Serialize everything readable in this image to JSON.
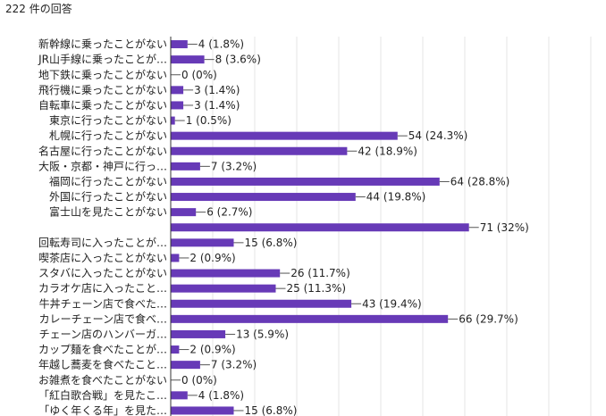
{
  "header": {
    "response_count": "222 件の回答"
  },
  "colors": {
    "bar": "#673ab7",
    "grid": "#e6e6e6",
    "axis": "#333333",
    "text": "#222222"
  },
  "chart_data": {
    "type": "bar",
    "orientation": "horizontal",
    "grid": true,
    "xlim": [
      0,
      100
    ],
    "categories": [
      "新幹線に乗ったことがない",
      "JR山手線に乗ったことが…",
      "地下鉄に乗ったことがない",
      "飛行機に乗ったことがない",
      "自転車に乗ったことがない",
      "東京に行ったことがない",
      "札幌に行ったことがない",
      "名古屋に行ったことがない",
      "大阪・京都・神戸に行っ…",
      "福岡に行ったことがない",
      "外国に行ったことがない",
      "富士山を見たことがない",
      "",
      "回転寿司に入ったことが…",
      "喫茶店に入ったことがない",
      "スタバに入ったことがない",
      "カラオケ店に入ったこと…",
      "牛丼チェーン店で食べた…",
      "カレーチェーン店で食べ…",
      "チェーン店のハンバーガ…",
      "カップ麺を食べたことが…",
      "年越し蕎麦を食べたこと…",
      "お雑煮を食べたことがない",
      "「紅白歌合戦」を見たこ…",
      "「ゆく年くる年」を見た…"
    ],
    "values": [
      4,
      8,
      0,
      3,
      3,
      1,
      54,
      42,
      7,
      64,
      44,
      6,
      71,
      15,
      2,
      26,
      25,
      43,
      66,
      13,
      2,
      7,
      0,
      4,
      15
    ],
    "value_labels": [
      "4 (1.8%)",
      "8 (3.6%)",
      "0 (0%)",
      "3 (1.4%)",
      "3 (1.4%)",
      "1 (0.5%)",
      "54 (24.3%)",
      "42 (18.9%)",
      "7 (3.2%)",
      "64 (28.8%)",
      "44 (19.8%)",
      "6 (2.7%)",
      "71 (32%)",
      "15 (6.8%)",
      "2 (0.9%)",
      "26 (11.7%)",
      "25 (11.3%)",
      "43 (19.4%)",
      "66 (29.7%)",
      "13 (5.9%)",
      "2 (0.9%)",
      "7 (3.2%)",
      "0 (0%)",
      "4 (1.8%)",
      "15 (6.8%)"
    ]
  }
}
